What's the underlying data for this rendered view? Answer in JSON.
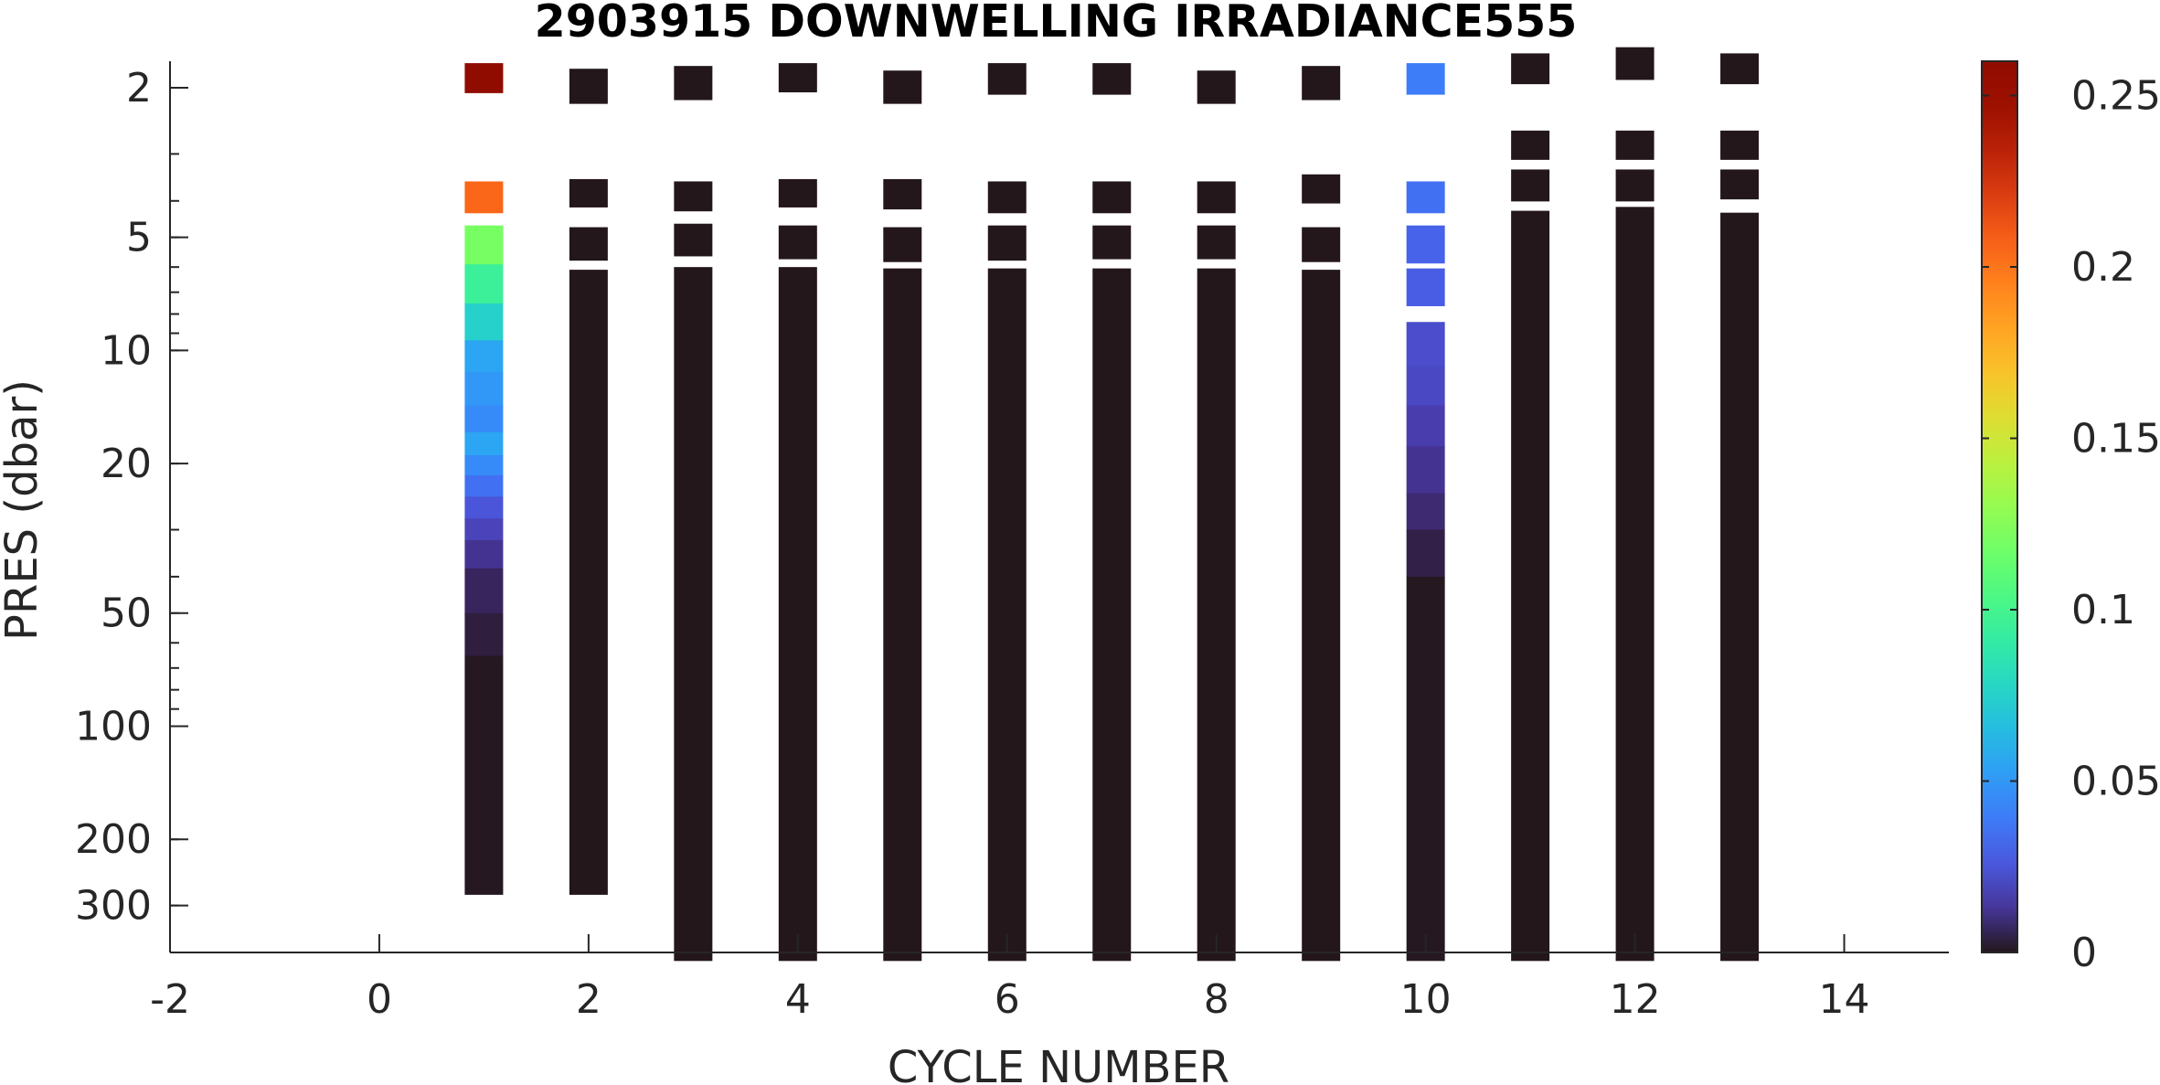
{
  "chart_data": {
    "type": "heatmap",
    "title": "2903915  DOWNWELLING IRRADIANCE555",
    "xlabel": "CYCLE NUMBER",
    "ylabel": "PRES (dbar)",
    "x_ticks": [
      "-2",
      "0",
      "2",
      "4",
      "6",
      "8",
      "10",
      "12",
      "14"
    ],
    "xlim": [
      -2,
      15
    ],
    "y_scale": "log",
    "y_reversed": true,
    "ylim": [
      1.7,
      400
    ],
    "y_ticks": [
      "2",
      "5",
      "10",
      "20",
      "50",
      "100",
      "200",
      "300"
    ],
    "colorbar": {
      "colormap": "turbo",
      "clim": [
        0,
        0.26
      ],
      "ticks": [
        "0",
        "0.05",
        "0.1",
        "0.15",
        "0.2",
        "0.25"
      ]
    },
    "series": [
      {
        "cycle": 1,
        "cells": [
          [
            1.72,
            2.06,
            0.26
          ],
          [
            3.55,
            4.3,
            0.205
          ],
          [
            4.65,
            5.9,
            0.12
          ],
          [
            5.9,
            7.5,
            0.095
          ],
          [
            7.5,
            9.4,
            0.075
          ],
          [
            9.4,
            11.4,
            0.055
          ],
          [
            11.4,
            14,
            0.05
          ],
          [
            14,
            16.5,
            0.045
          ],
          [
            16.5,
            19,
            0.055
          ],
          [
            19,
            21.5,
            0.045
          ],
          [
            21.5,
            24.5,
            0.035
          ],
          [
            24.5,
            28,
            0.025
          ],
          [
            28,
            32,
            0.018
          ],
          [
            32,
            38,
            0.012
          ],
          [
            38,
            50,
            0.006
          ],
          [
            50,
            65,
            0.003
          ],
          [
            65,
            280,
            0.0005
          ]
        ]
      },
      {
        "cycle": 2,
        "cells": [
          [
            1.78,
            2.2,
            0
          ],
          [
            3.5,
            4.15,
            0
          ],
          [
            4.7,
            5.75,
            0
          ],
          [
            6.1,
            280,
            0
          ]
        ]
      },
      {
        "cycle": 3,
        "cells": [
          [
            1.75,
            2.15,
            0
          ],
          [
            3.55,
            4.25,
            0
          ],
          [
            4.6,
            5.6,
            0
          ],
          [
            6.0,
            420,
            0
          ]
        ]
      },
      {
        "cycle": 4,
        "cells": [
          [
            1.72,
            2.05,
            0
          ],
          [
            3.5,
            4.15,
            0
          ],
          [
            4.65,
            5.7,
            0
          ],
          [
            6.0,
            420,
            0
          ]
        ]
      },
      {
        "cycle": 5,
        "cells": [
          [
            1.8,
            2.2,
            0
          ],
          [
            3.5,
            4.2,
            0
          ],
          [
            4.7,
            5.8,
            0
          ],
          [
            6.05,
            420,
            0
          ]
        ]
      },
      {
        "cycle": 6,
        "cells": [
          [
            1.72,
            2.08,
            0
          ],
          [
            3.55,
            4.3,
            0
          ],
          [
            4.65,
            5.75,
            0
          ],
          [
            6.05,
            420,
            0
          ]
        ]
      },
      {
        "cycle": 7,
        "cells": [
          [
            1.72,
            2.08,
            0
          ],
          [
            3.55,
            4.3,
            0
          ],
          [
            4.65,
            5.7,
            0
          ],
          [
            6.05,
            420,
            0
          ]
        ]
      },
      {
        "cycle": 8,
        "cells": [
          [
            1.8,
            2.2,
            0
          ],
          [
            3.55,
            4.3,
            0
          ],
          [
            4.65,
            5.7,
            0
          ],
          [
            6.05,
            420,
            0
          ]
        ]
      },
      {
        "cycle": 9,
        "cells": [
          [
            1.75,
            2.15,
            0
          ],
          [
            3.4,
            4.05,
            0
          ],
          [
            4.7,
            5.8,
            0
          ],
          [
            6.1,
            420,
            0
          ]
        ]
      },
      {
        "cycle": 10,
        "cells": [
          [
            1.72,
            2.08,
            0.04
          ],
          [
            3.55,
            4.3,
            0.035
          ],
          [
            4.65,
            5.85,
            0.03
          ],
          [
            6.05,
            7.6,
            0.028
          ],
          [
            8.4,
            11,
            0.022
          ],
          [
            11,
            14,
            0.02
          ],
          [
            14,
            18,
            0.016
          ],
          [
            18,
            24,
            0.012
          ],
          [
            24,
            30,
            0.008
          ],
          [
            30,
            40,
            0.004
          ],
          [
            40,
            420,
            0.0005
          ]
        ]
      },
      {
        "cycle": 11,
        "cells": [
          [
            1.62,
            1.95,
            0
          ],
          [
            2.6,
            3.1,
            0
          ],
          [
            3.3,
            4.0,
            0
          ],
          [
            4.25,
            420,
            0
          ]
        ]
      },
      {
        "cycle": 12,
        "cells": [
          [
            1.56,
            1.9,
            0
          ],
          [
            2.6,
            3.1,
            0
          ],
          [
            3.3,
            4.0,
            0
          ],
          [
            4.15,
            420,
            0
          ]
        ]
      },
      {
        "cycle": 13,
        "cells": [
          [
            1.62,
            1.95,
            0
          ],
          [
            2.6,
            3.1,
            0
          ],
          [
            3.3,
            3.95,
            0
          ],
          [
            4.3,
            420,
            0
          ]
        ]
      }
    ]
  }
}
